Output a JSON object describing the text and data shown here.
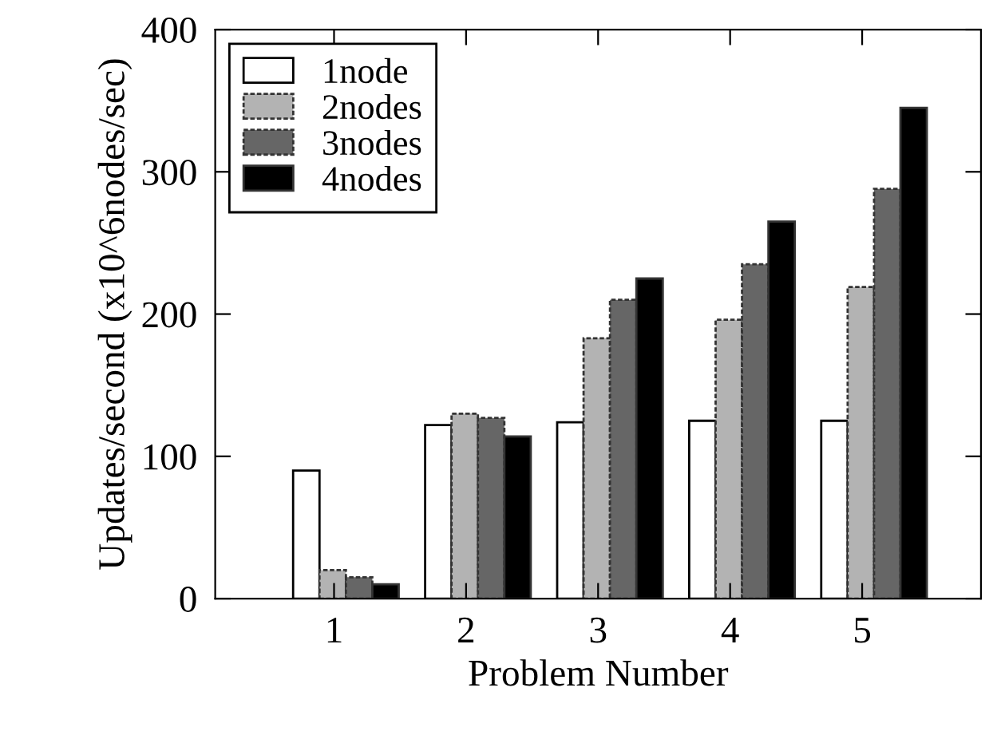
{
  "chart_data": {
    "type": "bar",
    "xlabel": "Problem Number",
    "ylabel": "Updates/second (x10^6nodes/sec)",
    "categories": [
      "1",
      "2",
      "3",
      "4",
      "5"
    ],
    "series": [
      {
        "name": "1node",
        "color": "#ffffff",
        "values": [
          90,
          122,
          124,
          125,
          125
        ]
      },
      {
        "name": "2nodes",
        "color": "#b3b3b3",
        "values": [
          20,
          130,
          183,
          196,
          219
        ]
      },
      {
        "name": "3nodes",
        "color": "#666666",
        "values": [
          15,
          127,
          210,
          235,
          288
        ]
      },
      {
        "name": "4nodes",
        "color": "#000000",
        "values": [
          10,
          114,
          225,
          265,
          345
        ]
      }
    ],
    "ylim": [
      0,
      400
    ],
    "yticks": [
      0,
      100,
      200,
      300,
      400
    ],
    "grid": false,
    "legend": "top left"
  }
}
